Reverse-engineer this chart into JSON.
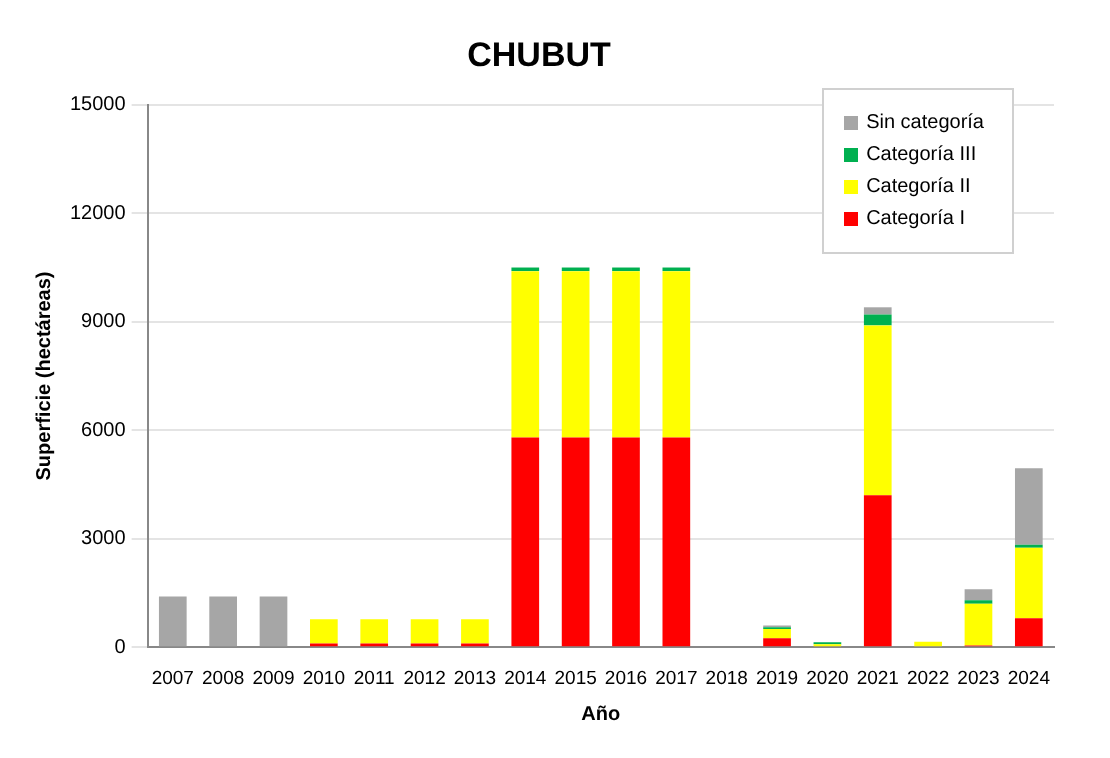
{
  "chart_data": {
    "type": "bar",
    "title": "CHUBUT",
    "xlabel": "Año",
    "ylabel": "Superficie (hectáreas)",
    "categories": [
      "2007",
      "2008",
      "2009",
      "2010",
      "2011",
      "2012",
      "2013",
      "2014",
      "2015",
      "2016",
      "2017",
      "2018",
      "2019",
      "2020",
      "2021",
      "2022",
      "2023",
      "2024"
    ],
    "stacked": true,
    "ylim": [
      0,
      15000
    ],
    "yticks": [
      0,
      3000,
      6000,
      9000,
      12000,
      15000
    ],
    "grid": "y",
    "legend": "top right",
    "series": [
      {
        "name": "Categoría I",
        "color": "#ff0000",
        "values": [
          0,
          0,
          0,
          100,
          100,
          100,
          100,
          5800,
          5800,
          5800,
          5800,
          0,
          250,
          0,
          4200,
          0,
          50,
          800
        ]
      },
      {
        "name": "Categoría II",
        "color": "#ffff00",
        "values": [
          0,
          0,
          0,
          670,
          670,
          670,
          670,
          4600,
          4600,
          4600,
          4600,
          0,
          250,
          80,
          4700,
          150,
          1150,
          1950
        ]
      },
      {
        "name": "Categoría III",
        "color": "#00b050",
        "values": [
          0,
          0,
          0,
          0,
          0,
          0,
          0,
          100,
          100,
          100,
          100,
          0,
          50,
          60,
          300,
          0,
          100,
          80
        ]
      },
      {
        "name": "Sin categoría",
        "color": "#a6a6a6",
        "values": [
          1400,
          1400,
          1400,
          0,
          0,
          0,
          0,
          0,
          0,
          0,
          0,
          0,
          50,
          0,
          200,
          0,
          300,
          2120
        ]
      }
    ]
  }
}
